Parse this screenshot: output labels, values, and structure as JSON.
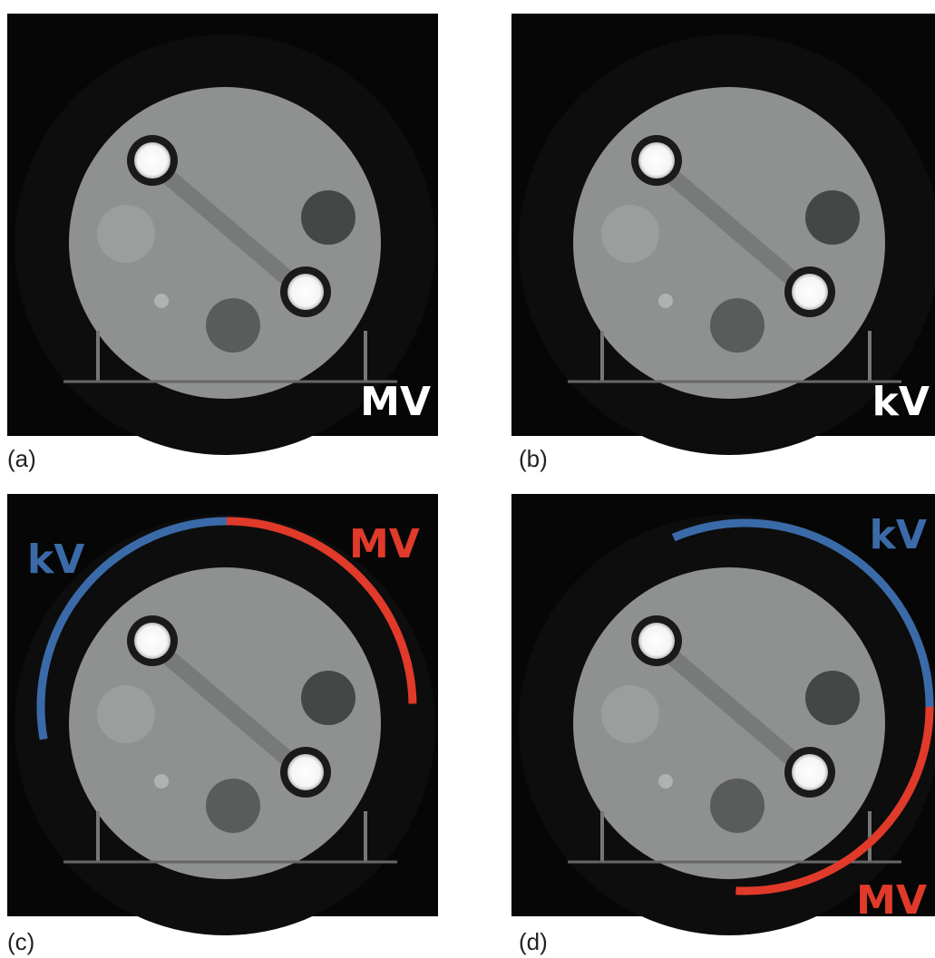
{
  "panels": [
    {
      "label": "(a)",
      "tags": [
        "MV"
      ]
    },
    {
      "label": "(b)",
      "tags": [
        "kV"
      ]
    },
    {
      "label": "(c)",
      "tags": [
        "kV",
        "MV"
      ]
    },
    {
      "label": "(d)",
      "tags": [
        "kV",
        "MV"
      ]
    }
  ]
}
